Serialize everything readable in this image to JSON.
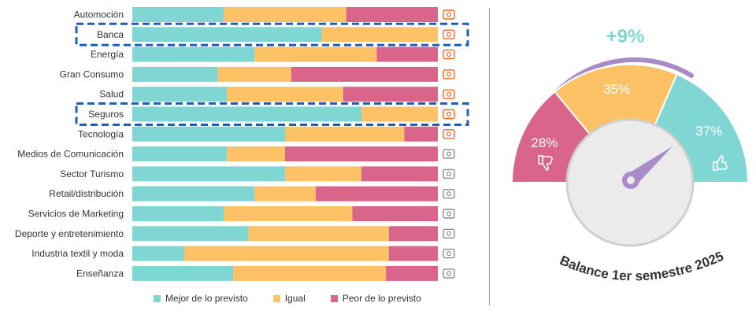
{
  "colors": {
    "better": "#7fd6d2",
    "same": "#fcc265",
    "worse": "#d9668a",
    "highlight": "#1f5db7",
    "icon": "#e46a2b",
    "arc": "#a98bc8",
    "balance": "#7fd6d2"
  },
  "chart_data": [
    {
      "type": "bar",
      "orientation": "horizontal",
      "stacked": true,
      "normalized": true,
      "categories": [
        "Automoción",
        "Banca",
        "Energía",
        "Gran Consumo",
        "Salud",
        "Seguros",
        "Tecnología",
        "Medios de Comunicación",
        "Sector Turismo",
        "Retail/distribución",
        "Servicios de Marketing",
        "Deporte y entretenimiento",
        "Industria textil y moda",
        "Enseñanza"
      ],
      "series": [
        {
          "name": "Mejor de lo previsto",
          "values": [
            30,
            62,
            40,
            28,
            31,
            75,
            50,
            31,
            50,
            40,
            30,
            38,
            17,
            33
          ]
        },
        {
          "name": "Igual",
          "values": [
            40,
            38,
            40,
            24,
            38,
            25,
            39,
            19,
            25,
            20,
            42,
            46,
            67,
            50
          ]
        },
        {
          "name": "Peor de lo previsto",
          "values": [
            30,
            0,
            20,
            48,
            31,
            0,
            11,
            50,
            25,
            40,
            28,
            16,
            16,
            17
          ]
        }
      ],
      "highlighted": [
        "Banca",
        "Seguros"
      ],
      "icons": [
        "car-icon",
        "bank-icon",
        "power-tower-icon",
        "bottle-icon",
        "medicine-icon",
        "shield-icon",
        "chip-icon",
        "media-icon",
        "airplane-icon",
        "cart-icon",
        "phone-icon",
        "sport-icon",
        "shoe-icon",
        "classroom-icon"
      ],
      "xlim": [
        0,
        100
      ],
      "legend_position": "bottom"
    },
    {
      "type": "pie",
      "subtype": "gauge",
      "categories": [
        "Peor",
        "Igual",
        "Mejor"
      ],
      "values": [
        28,
        35,
        37
      ],
      "labels": [
        "28%",
        "35%",
        "37%"
      ],
      "balance_label": "+9%",
      "title": "Balance 1er semestre 2025"
    }
  ]
}
